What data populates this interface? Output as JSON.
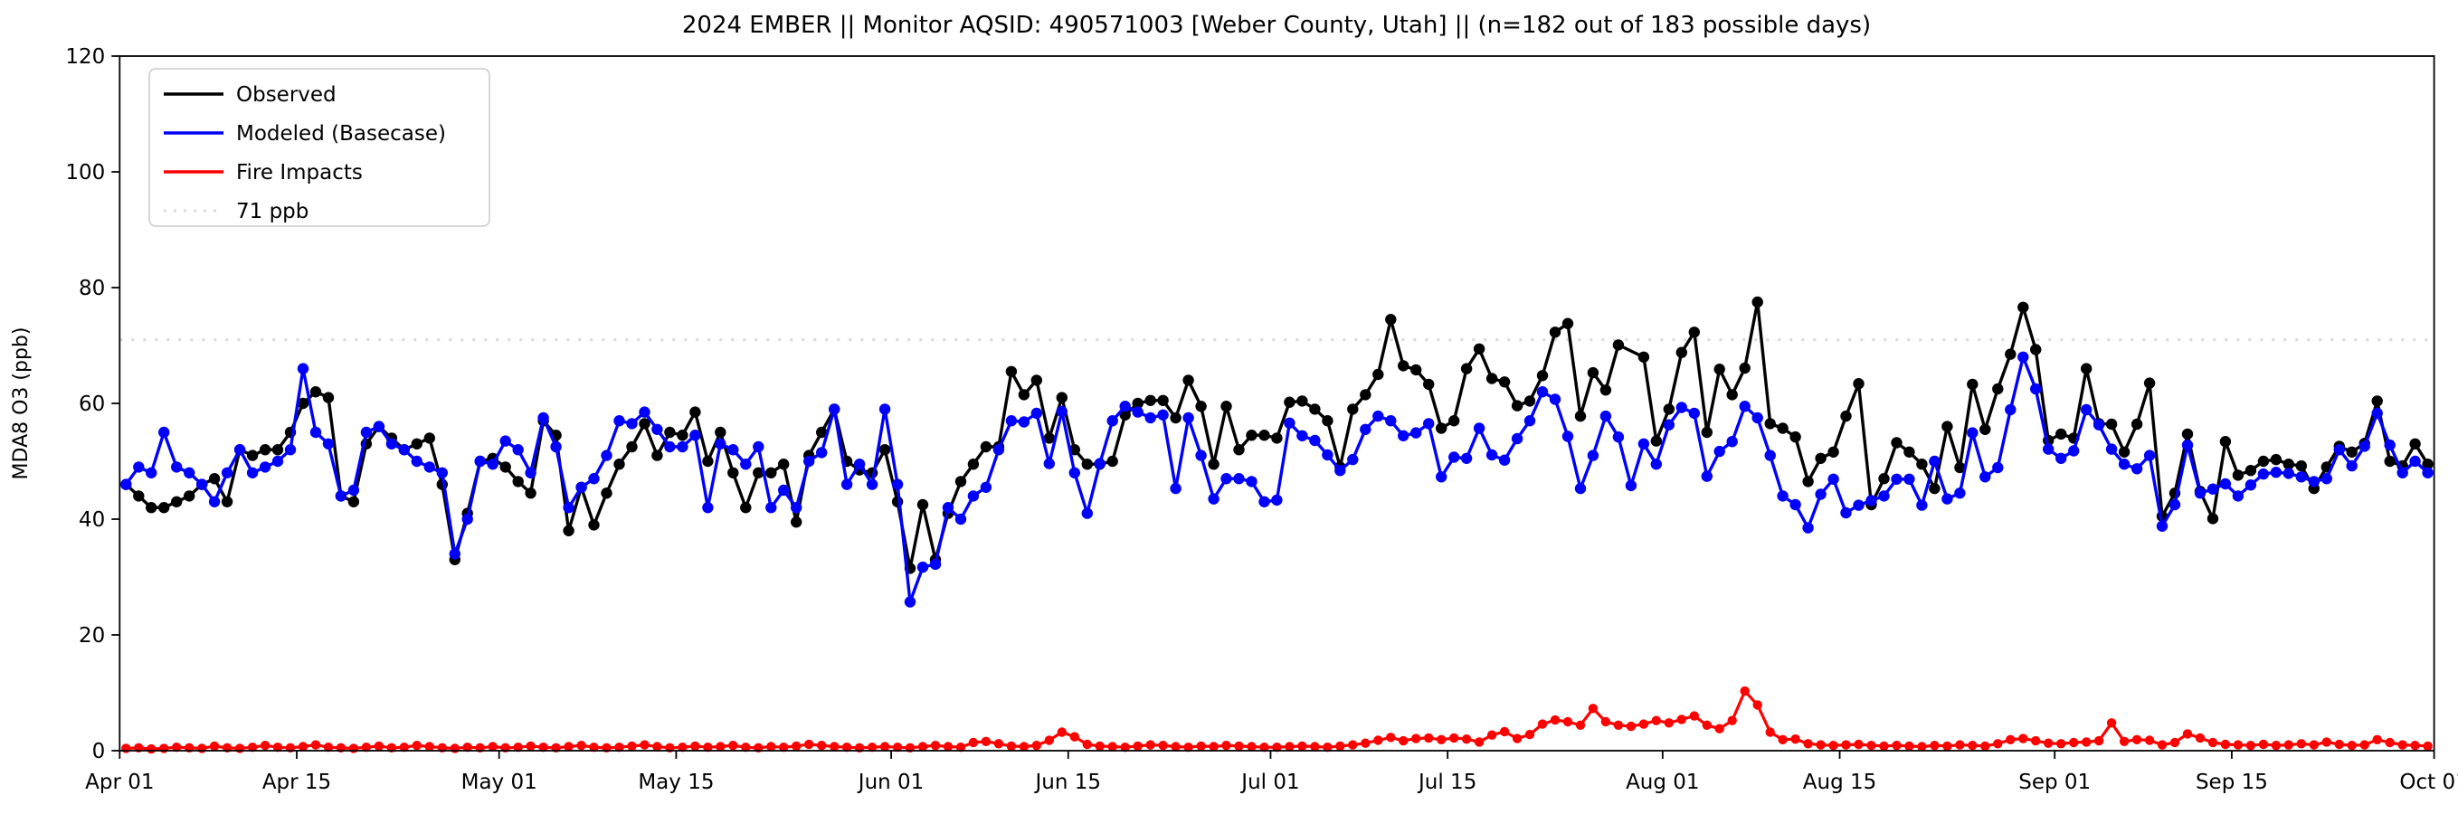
{
  "title": "2024 EMBER || Monitor AQSID: 490571003 [Weber County, Utah] || (n=182 out of 183 possible days)",
  "ylabel": "MDA8 O3 (ppb)",
  "colors": {
    "observed": "#000000",
    "modeled": "#0000ff",
    "fire": "#ff0000",
    "threshold": "#d9d9d9",
    "spine": "#000000",
    "background": "#ffffff",
    "legend_border": "#cccccc"
  },
  "legend": {
    "entries": [
      {
        "label": "Observed",
        "color": "#000000",
        "style": "solid"
      },
      {
        "label": "Modeled (Basecase)",
        "color": "#0000ff",
        "style": "solid"
      },
      {
        "label": "Fire Impacts",
        "color": "#ff0000",
        "style": "solid"
      },
      {
        "label": "71 ppb",
        "color": "#d9d9d9",
        "style": "dotted"
      }
    ]
  },
  "chart_data": {
    "type": "line",
    "title": "2024 EMBER || Monitor AQSID: 490571003 [Weber County, Utah] || (n=182 out of 183 possible days)",
    "xlabel": "",
    "ylabel": "MDA8 O3 (ppb)",
    "ylim": [
      0,
      120
    ],
    "yticks": [
      0,
      20,
      40,
      60,
      80,
      100,
      120
    ],
    "x_span_days": 183,
    "x_start": "Apr 01",
    "x_end": "Oct 01",
    "xticks": [
      {
        "label": "Apr 01",
        "day": 0
      },
      {
        "label": "Apr 15",
        "day": 14
      },
      {
        "label": "May 01",
        "day": 30
      },
      {
        "label": "May 15",
        "day": 44
      },
      {
        "label": "Jun 01",
        "day": 61
      },
      {
        "label": "Jun 15",
        "day": 75
      },
      {
        "label": "Jul 01",
        "day": 91
      },
      {
        "label": "Jul 15",
        "day": 105
      },
      {
        "label": "Aug 01",
        "day": 122
      },
      {
        "label": "Aug 15",
        "day": 136
      },
      {
        "label": "Sep 01",
        "day": 153
      },
      {
        "label": "Sep 15",
        "day": 167
      },
      {
        "label": "Oct 01",
        "day": 183
      }
    ],
    "threshold_ppb": 71,
    "grid": false,
    "legend_position": "upper-left",
    "note_missing_day": "Observed value missing on Jul 29 (n=182 of 183)",
    "series": [
      {
        "name": "Observed",
        "values": [
          46,
          44,
          42,
          42,
          43,
          44,
          46,
          47,
          43,
          52,
          51,
          52,
          52,
          55,
          60,
          62,
          61,
          44,
          43,
          53,
          56,
          54,
          52,
          53,
          54,
          46,
          33,
          41,
          50,
          50.5,
          49,
          46.5,
          44.5,
          57,
          54.5,
          38,
          45.5,
          39,
          44.5,
          49.5,
          52.5,
          56.5,
          51,
          55,
          54.5,
          58.5,
          50,
          55,
          48,
          42,
          48,
          48,
          49.5,
          39.5,
          51,
          55,
          59,
          50,
          48.5,
          48,
          52,
          43,
          31.5,
          42.5,
          33,
          41,
          46.5,
          49.5,
          52.5,
          52.5,
          65.5,
          61.5,
          64,
          54,
          61,
          52,
          49.5,
          49.5,
          50,
          58,
          60,
          60.5,
          60.5,
          57.5,
          64,
          59.5,
          49.5,
          59.5,
          52,
          54.5,
          54.5,
          54,
          60.2,
          60.4,
          59,
          57,
          49,
          59,
          61.5,
          65,
          74.5,
          66.5,
          65.8,
          63.3,
          55.7,
          57,
          66,
          69.4,
          64.3,
          63.7,
          59.6,
          60.4,
          64.8,
          72.3,
          73.8,
          57.8,
          65.3,
          62.3,
          70.1,
          null,
          68,
          53.5,
          59,
          68.8,
          72.3,
          55,
          65.9,
          61.5,
          66.1,
          77.5,
          56.5,
          55.7,
          54.2,
          46.5,
          50.5,
          51.6,
          57.8,
          63.4,
          42.5,
          47,
          53.2,
          51.6,
          49.5,
          45.3,
          56,
          48.9,
          63.3,
          55.5,
          62.5,
          68.5,
          76.6,
          69.3,
          53.6,
          54.7,
          54,
          66,
          56.5,
          56.4,
          51.6,
          56.4,
          63.5,
          40.5,
          44.5,
          54.7,
          44.8,
          40.1,
          53.4,
          47.6,
          48.4,
          50,
          50.3,
          49.5,
          49.2,
          45.3,
          49,
          52.6,
          51.6,
          53.1,
          60.4,
          50,
          49.2,
          53,
          49.5
        ]
      },
      {
        "name": "Modeled (Basecase)",
        "values": [
          46,
          49,
          48,
          55,
          49,
          48,
          46,
          43,
          48,
          52,
          48,
          49,
          50,
          52,
          66,
          55,
          53,
          44,
          45,
          55,
          56,
          53,
          52,
          50,
          49,
          48,
          34,
          40,
          50,
          49.5,
          53.5,
          52,
          48,
          57.5,
          52.5,
          42,
          45.5,
          47,
          51,
          57,
          56.5,
          58.5,
          55.5,
          52.5,
          52.5,
          54.5,
          42,
          53,
          52,
          49.5,
          52.5,
          42,
          45,
          42,
          50,
          51.5,
          59,
          46,
          49.5,
          46,
          59,
          46,
          25.7,
          31.7,
          32.2,
          42,
          40,
          44,
          45.5,
          52,
          57,
          56.8,
          58.3,
          49.6,
          58.6,
          48,
          41,
          49.6,
          57,
          59.5,
          58.5,
          57.5,
          58,
          45.3,
          57.5,
          51,
          43.5,
          47,
          47,
          46.5,
          43,
          43.3,
          56.6,
          54.4,
          53.6,
          51.1,
          48.4,
          50.3,
          55.5,
          57.8,
          57,
          54.4,
          54.9,
          56.5,
          47.3,
          50.7,
          50.5,
          55.7,
          51.1,
          50.2,
          53.9,
          57,
          62,
          60.7,
          54.3,
          45.3,
          51,
          57.8,
          54.2,
          45.8,
          53,
          49.5,
          56.3,
          59.3,
          58.3,
          47.4,
          51.7,
          53.4,
          59.5,
          57.5,
          51,
          44,
          42.5,
          38.5,
          44.3,
          46.9,
          41.1,
          42.4,
          43.2,
          44,
          46.9,
          46.9,
          42.4,
          50,
          43.5,
          44.5,
          54.9,
          47.3,
          48.9,
          58.9,
          68,
          62.5,
          52.1,
          50.5,
          51.8,
          58.9,
          56.3,
          52.1,
          49.5,
          48.7,
          51,
          38.8,
          42.5,
          52.8,
          44.5,
          45.2,
          46.1,
          44,
          45.9,
          47.8,
          48.1,
          47.9,
          47.3,
          46.5,
          47,
          52,
          49.2,
          52.6,
          58.3,
          52.8,
          48,
          50,
          48
        ]
      },
      {
        "name": "Fire Impacts",
        "values": [
          0.4,
          0.5,
          0.3,
          0.4,
          0.6,
          0.5,
          0.4,
          0.8,
          0.5,
          0.4,
          0.6,
          0.9,
          0.6,
          0.5,
          0.7,
          1.0,
          0.6,
          0.5,
          0.4,
          0.6,
          0.8,
          0.5,
          0.6,
          0.9,
          0.7,
          0.5,
          0.4,
          0.6,
          0.5,
          0.7,
          0.5,
          0.6,
          0.8,
          0.6,
          0.5,
          0.7,
          0.9,
          0.6,
          0.5,
          0.6,
          0.8,
          1.0,
          0.7,
          0.5,
          0.6,
          0.8,
          0.6,
          0.7,
          0.9,
          0.6,
          0.5,
          0.7,
          0.6,
          0.8,
          1.1,
          0.9,
          0.7,
          0.6,
          0.5,
          0.6,
          0.7,
          0.6,
          0.5,
          0.7,
          0.9,
          0.7,
          0.6,
          1.4,
          1.6,
          1.2,
          0.8,
          0.7,
          0.9,
          1.8,
          3.2,
          2.4,
          1.1,
          0.8,
          0.7,
          0.6,
          0.8,
          1.0,
          0.9,
          0.7,
          0.6,
          0.8,
          0.7,
          0.9,
          0.8,
          0.7,
          0.6,
          0.6,
          0.7,
          0.8,
          0.7,
          0.6,
          0.8,
          1.0,
          1.3,
          1.8,
          2.3,
          1.7,
          2.1,
          2.2,
          1.9,
          2.2,
          2.0,
          1.5,
          2.7,
          3.3,
          2.1,
          2.8,
          4.6,
          5.3,
          5.0,
          4.4,
          7.3,
          5.0,
          4.4,
          4.2,
          4.6,
          5.2,
          4.8,
          5.4,
          6.0,
          4.4,
          3.8,
          5.2,
          10.3,
          7.9,
          3.2,
          1.9,
          2.0,
          1.2,
          1.0,
          0.9,
          1.0,
          1.1,
          0.9,
          0.8,
          0.9,
          0.8,
          0.7,
          0.9,
          0.8,
          1.0,
          0.9,
          0.8,
          1.2,
          1.9,
          2.1,
          1.7,
          1.3,
          1.2,
          1.4,
          1.5,
          1.7,
          4.8,
          1.6,
          1.9,
          1.8,
          1.0,
          1.4,
          2.9,
          2.2,
          1.4,
          1.1,
          1.0,
          0.9,
          1.1,
          0.9,
          1.0,
          1.2,
          1.0,
          1.5,
          1.1,
          0.9,
          1.0,
          1.9,
          1.4,
          1.0,
          0.9,
          0.8
        ]
      }
    ]
  }
}
